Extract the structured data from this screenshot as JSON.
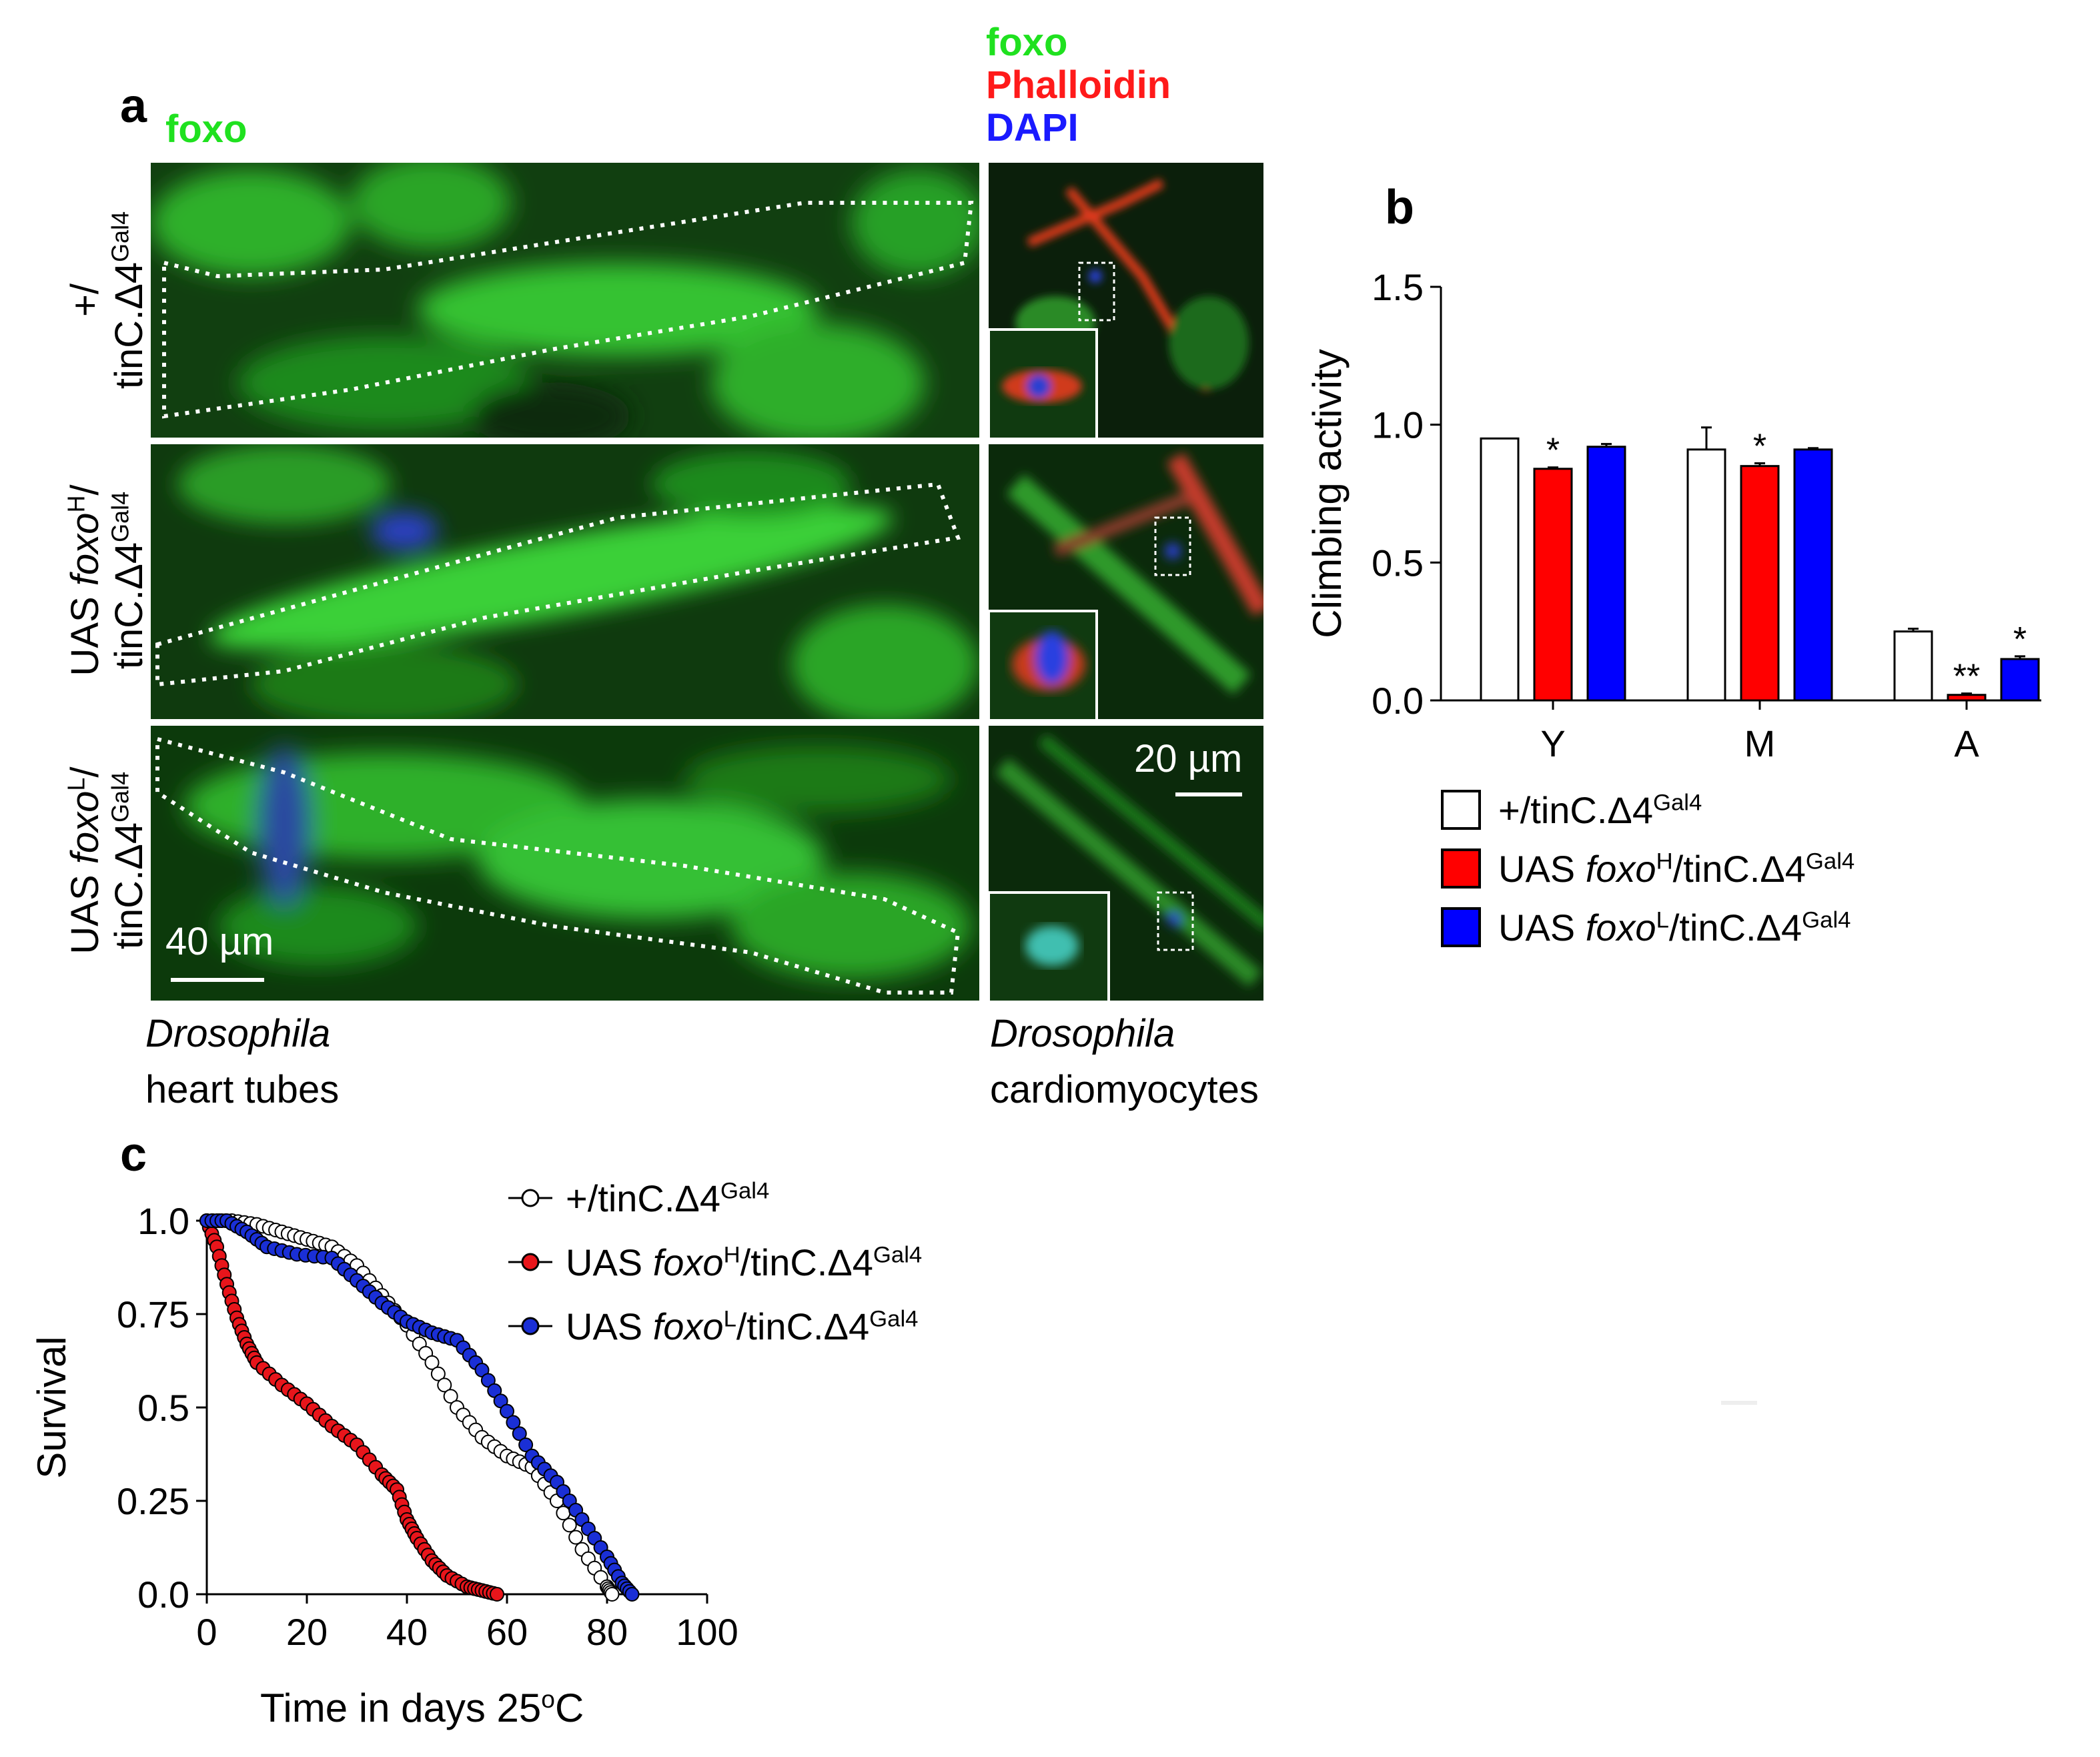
{
  "panel_a": {
    "letter": "a",
    "channel_label_main": "foxo",
    "channel_labels_right": [
      "foxo",
      "Phalloidin",
      "DAPI"
    ],
    "row_labels": [
      {
        "line1": "+/",
        "line2_base": "tinC.Δ4",
        "line2_sup": "Gal4"
      },
      {
        "line1_pre": "UAS ",
        "line1_ital": "foxo",
        "line1_sup": "H",
        "line1_post": "/",
        "line2_base": "tinC.Δ4",
        "line2_sup": "Gal4"
      },
      {
        "line1_pre": "UAS ",
        "line1_ital": "foxo",
        "line1_sup": "L",
        "line1_post": "/",
        "line2_base": "tinC.Δ4",
        "line2_sup": "Gal4"
      }
    ],
    "scale_left": "40 µm",
    "scale_right": "20 µm",
    "caption_left": {
      "ital": "Drosophila",
      "plain": "heart tubes"
    },
    "caption_right": {
      "ital": "Drosophila",
      "plain": "cardiomyocytes"
    },
    "colors": {
      "foxo": "#1fe11f",
      "phalloidin": "#ff1a1a",
      "dapi": "#1a1aff"
    }
  },
  "panel_b": {
    "letter": "b",
    "legend": [
      {
        "pre": "+/tinC.Δ4",
        "ital": "",
        "sup1": "",
        "mid": "",
        "sup": "Gal4",
        "color": "#ffffff"
      },
      {
        "pre": "UAS ",
        "ital": "foxo",
        "sup1": "H",
        "mid": "/tinC.Δ4",
        "sup": "Gal4",
        "color": "#ff0000"
      },
      {
        "pre": "UAS ",
        "ital": "foxo",
        "sup1": "L",
        "mid": "/tinC.Δ4",
        "sup": "Gal4",
        "color": "#0000ff"
      }
    ]
  },
  "panel_c": {
    "letter": "c",
    "legend": [
      {
        "pre": "+/tinC.Δ4",
        "ital": "",
        "sup1": "",
        "mid": "",
        "sup": "Gal4",
        "color": "#ffffff"
      },
      {
        "pre": "UAS ",
        "ital": "foxo",
        "sup1": "H",
        "mid": "/tinC.Δ4",
        "sup": "Gal4",
        "color": "#e8151b"
      },
      {
        "pre": "UAS ",
        "ital": "foxo",
        "sup1": "L",
        "mid": "/tinC.Δ4",
        "sup": "Gal4",
        "color": "#1a2fd6"
      }
    ],
    "xlabel_pre": "Time in days 25",
    "xlabel_sup": "o",
    "xlabel_post": "C"
  },
  "chart_data": [
    {
      "type": "bar",
      "ylabel": "Climbing activity",
      "categories": [
        "Y",
        "M",
        "A"
      ],
      "ylim": [
        0,
        1.5
      ],
      "yticks": [
        "0.0",
        "0.5",
        "1.0",
        "1.5"
      ],
      "series": [
        {
          "name": "+/tinC.Δ4Gal4",
          "color": "#ffffff",
          "values": [
            0.95,
            0.91,
            0.25
          ],
          "errors": [
            0.0,
            0.08,
            0.01
          ],
          "sig": [
            "",
            "",
            ""
          ]
        },
        {
          "name": "UAS foxoH/tinC.Δ4Gal4",
          "color": "#ff0000",
          "values": [
            0.84,
            0.85,
            0.02
          ],
          "errors": [
            0.005,
            0.01,
            0.005
          ],
          "sig": [
            "*",
            "*",
            "**"
          ]
        },
        {
          "name": "UAS foxoL/tinC.Δ4Gal4",
          "color": "#0000ff",
          "values": [
            0.92,
            0.91,
            0.15
          ],
          "errors": [
            0.01,
            0.005,
            0.01
          ],
          "sig": [
            "",
            "",
            "*"
          ]
        }
      ]
    },
    {
      "type": "line",
      "ylabel": "Survival",
      "xlabel": "Time in days 25oC",
      "xlim": [
        0,
        100
      ],
      "ylim": [
        0,
        1.0
      ],
      "xticks": [
        "0",
        "20",
        "40",
        "60",
        "80",
        "100"
      ],
      "yticks": [
        "0.0",
        "0.25",
        "0.5",
        "0.75",
        "1.0"
      ],
      "series": [
        {
          "name": "+/tinC.Δ4Gal4",
          "color": "#ffffff",
          "x": [
            0,
            5,
            10,
            15,
            20,
            25,
            30,
            35,
            40,
            45,
            50,
            55,
            60,
            65,
            70,
            75,
            80,
            81
          ],
          "y": [
            1.0,
            1.0,
            0.99,
            0.97,
            0.95,
            0.93,
            0.88,
            0.8,
            0.72,
            0.62,
            0.5,
            0.42,
            0.37,
            0.34,
            0.25,
            0.12,
            0.02,
            0.0
          ]
        },
        {
          "name": "UAS foxoH/tinC.Δ4Gal4",
          "color": "#e8151b",
          "x": [
            0,
            2,
            4,
            6,
            8,
            10,
            15,
            20,
            25,
            30,
            35,
            38,
            40,
            42,
            45,
            48,
            52,
            55,
            58
          ],
          "y": [
            1.0,
            0.93,
            0.83,
            0.74,
            0.67,
            0.62,
            0.56,
            0.51,
            0.45,
            0.4,
            0.32,
            0.28,
            0.2,
            0.15,
            0.09,
            0.05,
            0.02,
            0.01,
            0.0
          ]
        },
        {
          "name": "UAS foxoL/tinC.Δ4Gal4",
          "color": "#1a2fd6",
          "x": [
            0,
            4,
            8,
            12,
            18,
            25,
            30,
            35,
            40,
            45,
            50,
            55,
            60,
            65,
            70,
            75,
            80,
            83,
            85
          ],
          "y": [
            1.0,
            1.0,
            0.97,
            0.93,
            0.91,
            0.9,
            0.84,
            0.78,
            0.73,
            0.7,
            0.68,
            0.6,
            0.49,
            0.37,
            0.3,
            0.2,
            0.1,
            0.03,
            0.0
          ]
        }
      ]
    }
  ]
}
